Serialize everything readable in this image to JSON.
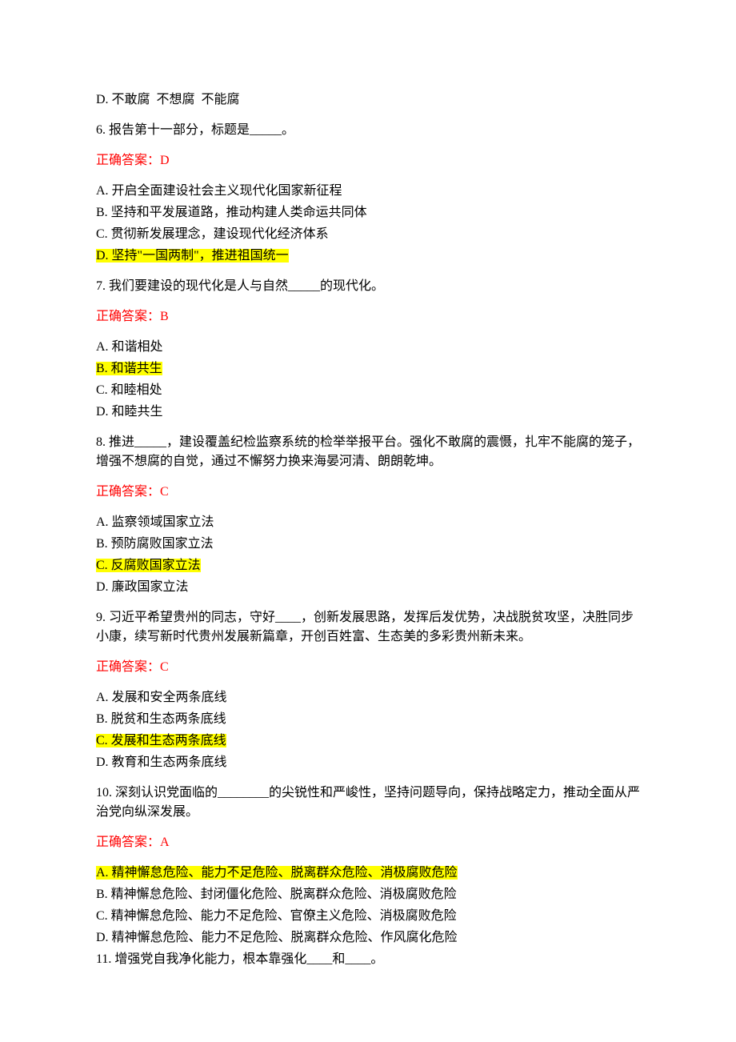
{
  "colors": {
    "text": "#000000",
    "answer": "#ff0000",
    "highlight_bg": "#ffff00",
    "page_bg": "#ffffff"
  },
  "typography": {
    "font_family": "SimSun / 宋体",
    "font_size_pt": 12,
    "line_height": 1.5
  },
  "leading": {
    "optD": "D. 不敢腐  不想腐  不能腐"
  },
  "q6": {
    "question": "6. 报告第十一部分，标题是_____。",
    "answer_label": "正确答案：D",
    "options": {
      "A": "A. 开启全面建设社会主义现代化国家新征程",
      "B": "B. 坚持和平发展道路，推动构建人类命运共同体",
      "C": "C. 贯彻新发展理念，建设现代化经济体系",
      "D": "D. 坚持\"一国两制\"，推进祖国统一"
    },
    "correct": "D"
  },
  "q7": {
    "question": "7. 我们要建设的现代化是人与自然_____的现代化。",
    "answer_label": "正确答案：B",
    "options": {
      "A": "A. 和谐相处",
      "B": "B. 和谐共生",
      "C": "C. 和睦相处",
      "D": "D. 和睦共生"
    },
    "correct": "B"
  },
  "q8": {
    "question": "8. 推进_____，建设覆盖纪检监察系统的检举举报平台。强化不敢腐的震慑，扎牢不能腐的笼子，增强不想腐的自觉，通过不懈努力换来海晏河清、朗朗乾坤。",
    "answer_label": "正确答案：C",
    "options": {
      "A": "A. 监察领域国家立法",
      "B": "B. 预防腐败国家立法",
      "C": "C. 反腐败国家立法",
      "D": "D. 廉政国家立法"
    },
    "correct": "C"
  },
  "q9": {
    "question": "9. 习近平希望贵州的同志，守好____，创新发展思路，发挥后发优势，决战脱贫攻坚，决胜同步小康，续写新时代贵州发展新篇章，开创百姓富、生态美的多彩贵州新未来。",
    "answer_label": "正确答案：C",
    "options": {
      "A": "A. 发展和安全两条底线",
      "B": "B. 脱贫和生态两条底线",
      "C": "C. 发展和生态两条底线",
      "D": "D. 教育和生态两条底线"
    },
    "correct": "C"
  },
  "q10": {
    "question": "10. 深刻认识党面临的________的尖锐性和严峻性，坚持问题导向，保持战略定力，推动全面从严治党向纵深发展。",
    "answer_label": "正确答案：A",
    "options": {
      "A": "A. 精神懈怠危险、能力不足危险、脱离群众危险、消极腐败危险",
      "B": "B. 精神懈怠危险、封闭僵化危险、脱离群众危险、消极腐败危险",
      "C": "C. 精神懈怠危险、能力不足危险、官僚主义危险、消极腐败危险",
      "D": "D. 精神懈怠危险、能力不足危险、脱离群众危险、作风腐化危险"
    },
    "correct": "A"
  },
  "q11": {
    "question": "11. 增强党自我净化能力，根本靠强化____和____。"
  }
}
